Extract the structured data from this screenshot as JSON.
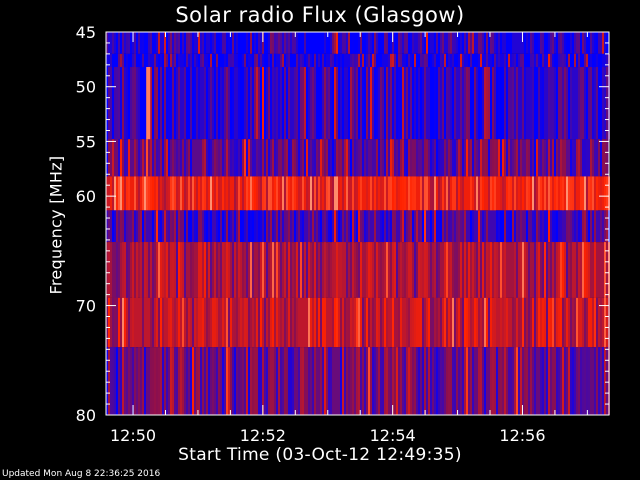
{
  "chart_data": {
    "type": "heatmap",
    "title": "Solar radio Flux (Glasgow)",
    "xlabel": "Start Time (03-Oct-12 12:49:35)",
    "ylabel": "Frequency [MHz]",
    "x_ticks": [
      "12:50",
      "12:52",
      "12:54",
      "12:56"
    ],
    "x_tick_minutes": [
      0.4167,
      2.4167,
      4.4167,
      6.4167
    ],
    "xlim_minutes": [
      0,
      7.75
    ],
    "y_ticks": [
      45,
      50,
      55,
      60,
      70,
      80
    ],
    "ylim": [
      45,
      80
    ],
    "colormap": [
      "#0000ff",
      "#8b0f4f",
      "#ff2200",
      "#ff9070"
    ],
    "bands": [
      {
        "from": 45.0,
        "to": 47.0,
        "level": 0.08
      },
      {
        "from": 47.0,
        "to": 48.2,
        "level": 0.05
      },
      {
        "from": 48.2,
        "to": 54.8,
        "level": 0.1
      },
      {
        "from": 54.8,
        "to": 58.2,
        "level": 0.22
      },
      {
        "from": 58.2,
        "to": 61.3,
        "level": 0.62
      },
      {
        "from": 61.3,
        "to": 64.2,
        "level": 0.15
      },
      {
        "from": 64.2,
        "to": 69.3,
        "level": 0.4
      },
      {
        "from": 69.3,
        "to": 73.8,
        "level": 0.48
      },
      {
        "from": 73.8,
        "to": 80.0,
        "level": 0.25
      }
    ],
    "annotations": [
      {
        "type": "burst",
        "x_minutes": 0.65,
        "from": 48.2,
        "to": 54.8,
        "level": 0.95
      }
    ]
  },
  "footer": "Updated Mon Aug  8 22:36:25 2016"
}
